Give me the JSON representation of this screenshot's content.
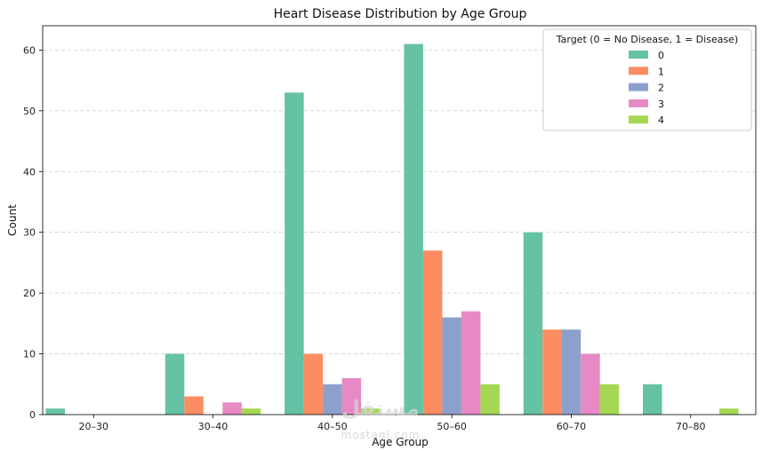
{
  "chart_data": {
    "type": "bar",
    "title": "Heart Disease Distribution by Age Group",
    "xlabel": "Age Group",
    "ylabel": "Count",
    "categories": [
      "20–30",
      "30–40",
      "40–50",
      "50–60",
      "60–70",
      "70–80"
    ],
    "yticks": [
      0,
      10,
      20,
      30,
      40,
      50,
      60
    ],
    "ylim": [
      0,
      64
    ],
    "grid": "horizontal dashed",
    "legend_title": "Target (0 = No Disease, 1 = Disease)",
    "legend_position": "top-right",
    "series": [
      {
        "name": "0",
        "color": "#66c2a5",
        "values": [
          1,
          10,
          53,
          61,
          30,
          5
        ]
      },
      {
        "name": "1",
        "color": "#fc8d62",
        "values": [
          0,
          3,
          10,
          27,
          14,
          0
        ]
      },
      {
        "name": "2",
        "color": "#8da0cb",
        "values": [
          0,
          0,
          5,
          16,
          14,
          0
        ]
      },
      {
        "name": "3",
        "color": "#e78ac3",
        "values": [
          0,
          2,
          6,
          17,
          10,
          0
        ]
      },
      {
        "name": "4",
        "color": "#a6d854",
        "values": [
          0,
          1,
          1,
          5,
          5,
          1
        ]
      }
    ]
  },
  "watermark": {
    "brand": "مستقل",
    "domain": "mostaql.com"
  }
}
